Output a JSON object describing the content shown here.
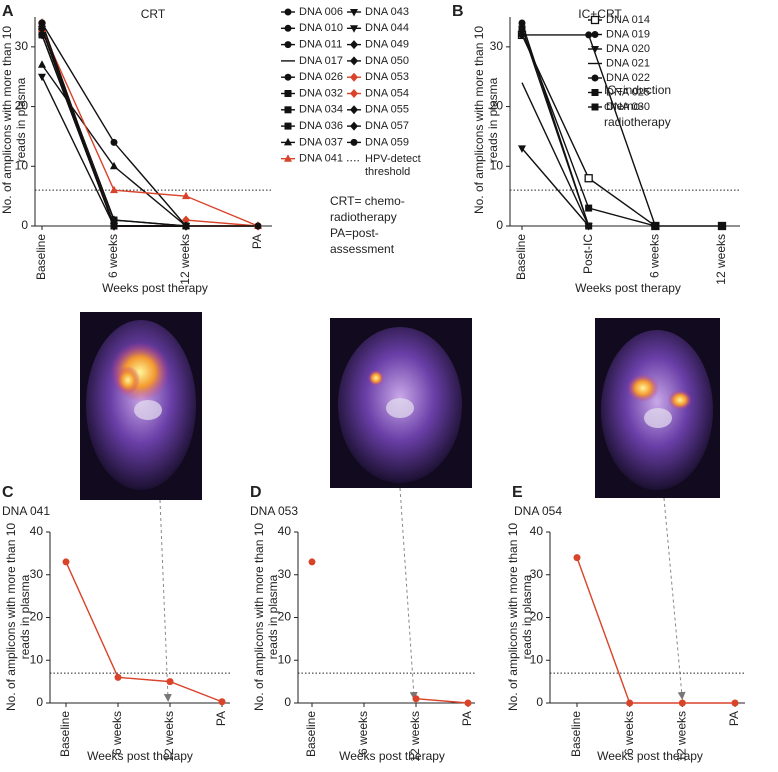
{
  "chart_data": [
    {
      "type": "line",
      "panel_label": "A",
      "title": "CRT",
      "y_label": "No. of amplicons with more than 10 reads in plasma",
      "x_label": "Weeks post therapy",
      "categories": [
        "Baseline",
        "6 weeks",
        "12 weeks",
        "PA"
      ],
      "ylim": [
        0,
        35
      ],
      "yticks": [
        0,
        10,
        20,
        30
      ],
      "threshold": 6,
      "threshold_label": "HPV-detect threshold",
      "notes": [
        "CRT= chemo-radiotherapy",
        "PA=post-assessment"
      ],
      "series": [
        {
          "name": "DNA 006",
          "color": "#111111",
          "marker": "circle",
          "values": [
            33,
            0,
            0,
            0
          ]
        },
        {
          "name": "DNA 010",
          "color": "#111111",
          "marker": "circle",
          "values": [
            33,
            1,
            0,
            null
          ]
        },
        {
          "name": "DNA 011",
          "color": "#111111",
          "marker": "circle",
          "values": [
            34,
            0,
            0,
            null
          ]
        },
        {
          "name": "DNA 017",
          "color": "#111111",
          "marker": "none",
          "values": [
            33,
            0,
            0,
            null
          ]
        },
        {
          "name": "DNA 026",
          "color": "#111111",
          "marker": "circle",
          "values": [
            34,
            14,
            0,
            null
          ]
        },
        {
          "name": "DNA 032",
          "color": "#111111",
          "marker": "square",
          "values": [
            33,
            0,
            null,
            null
          ]
        },
        {
          "name": "DNA 034",
          "color": "#111111",
          "marker": "square",
          "values": [
            32,
            0,
            0,
            null
          ]
        },
        {
          "name": "DNA 036",
          "color": "#111111",
          "marker": "square",
          "values": [
            33,
            1,
            null,
            null
          ]
        },
        {
          "name": "DNA 037",
          "color": "#111111",
          "marker": "triangle",
          "values": [
            27,
            10,
            0,
            null
          ]
        },
        {
          "name": "DNA 041",
          "color": "#d9432a",
          "marker": "triangle",
          "values": [
            33,
            6,
            5,
            0
          ]
        },
        {
          "name": "DNA 043",
          "color": "#111111",
          "marker": "triangle-down",
          "values": [
            25,
            0,
            0,
            null
          ]
        },
        {
          "name": "DNA 044",
          "color": "#111111",
          "marker": "triangle-down",
          "values": [
            33,
            0,
            0,
            null
          ]
        },
        {
          "name": "DNA 049",
          "color": "#111111",
          "marker": "diamond",
          "values": [
            34,
            0,
            null,
            null
          ]
        },
        {
          "name": "DNA 050",
          "color": "#111111",
          "marker": "diamond",
          "values": [
            33,
            1,
            0,
            null
          ]
        },
        {
          "name": "DNA 053",
          "color": "#d9432a",
          "marker": "diamond",
          "values": [
            33,
            null,
            1,
            0
          ]
        },
        {
          "name": "DNA 054",
          "color": "#d9432a",
          "marker": "diamond",
          "values": [
            34,
            0,
            0,
            0
          ]
        },
        {
          "name": "DNA 055",
          "color": "#111111",
          "marker": "diamond",
          "values": [
            33,
            0,
            0,
            null
          ]
        },
        {
          "name": "DNA 057",
          "color": "#111111",
          "marker": "diamond",
          "values": [
            32,
            0,
            0,
            null
          ]
        },
        {
          "name": "DNA 059",
          "color": "#111111",
          "marker": "circle",
          "values": [
            34,
            0,
            0,
            0
          ]
        }
      ]
    },
    {
      "type": "line",
      "panel_label": "B",
      "title": "IC+CRT",
      "y_label": "No. of amplicons with more than 10 reads in plasma",
      "x_label": "Weeks post therapy",
      "categories": [
        "Baseline",
        "Post-IC",
        "6 weeks",
        "12 weeks"
      ],
      "ylim": [
        0,
        35
      ],
      "yticks": [
        0,
        10,
        20,
        30
      ],
      "threshold": 6,
      "notes": [
        "IC=induction chemo-radiotherapy"
      ],
      "series": [
        {
          "name": "DNA 014",
          "color": "#111111",
          "marker": "square-open",
          "values": [
            32,
            8,
            0,
            0
          ]
        },
        {
          "name": "DNA 019",
          "color": "#111111",
          "marker": "circle",
          "values": [
            34,
            0,
            null,
            null
          ]
        },
        {
          "name": "DNA 020",
          "color": "#111111",
          "marker": "triangle-down",
          "values": [
            13,
            0,
            null,
            null
          ]
        },
        {
          "name": "DNA 021",
          "color": "#111111",
          "marker": "none",
          "values": [
            24,
            0,
            null,
            null
          ]
        },
        {
          "name": "DNA 022",
          "color": "#111111",
          "marker": "circle",
          "values": [
            32,
            32,
            0,
            null
          ]
        },
        {
          "name": "DNA 025",
          "color": "#111111",
          "marker": "square",
          "values": [
            33,
            3,
            0,
            null
          ]
        },
        {
          "name": "DNA 030",
          "color": "#111111",
          "marker": "square",
          "values": [
            33,
            0,
            null,
            0
          ]
        }
      ]
    },
    {
      "type": "line",
      "panel_label": "C",
      "title": "DNA 041",
      "y_label": "No. of amplicons with more than 10 reads in plasma",
      "x_label": "Weeks post therapy",
      "categories": [
        "Baseline",
        "6 weeks",
        "12 weeks",
        "PA"
      ],
      "ylim": [
        0,
        40
      ],
      "yticks": [
        0,
        10,
        20,
        30,
        40
      ],
      "threshold": 7,
      "color": "#d9432a",
      "marker": "circle",
      "values": [
        33,
        6,
        5,
        0.3
      ]
    },
    {
      "type": "line",
      "panel_label": "D",
      "title": "DNA 053",
      "y_label": "No. of amplicons with more than 10 reads in plasma",
      "x_label": "Weeks post therapy",
      "categories": [
        "Baseline",
        "6 weeks",
        "12 weeks",
        "PA"
      ],
      "ylim": [
        0,
        40
      ],
      "yticks": [
        0,
        10,
        20,
        30,
        40
      ],
      "threshold": 7,
      "color": "#d9432a",
      "marker": "circle",
      "values": [
        33,
        null,
        1,
        0
      ]
    },
    {
      "type": "line",
      "panel_label": "E",
      "title": "DNA 054",
      "y_label": "No. of amplicons with more than 10 reads in plasma",
      "x_label": "Weeks post therapy",
      "categories": [
        "Baseline",
        "6 weeks",
        "12 weeks",
        "PA"
      ],
      "ylim": [
        0,
        40
      ],
      "yticks": [
        0,
        10,
        20,
        30,
        40
      ],
      "threshold": 7,
      "color": "#d9432a",
      "marker": "circle",
      "values": [
        34,
        0,
        0,
        0
      ]
    }
  ]
}
